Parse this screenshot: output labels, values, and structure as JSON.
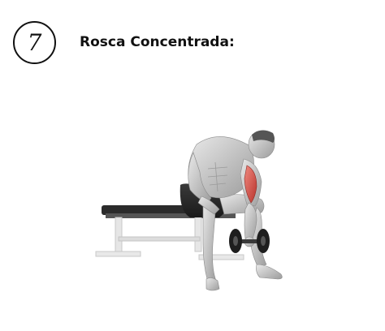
{
  "step": {
    "number": "7"
  },
  "exercise": {
    "title": "Rosca Concentrada:"
  },
  "illustration": {
    "subject": "seated-concentration-curl-figure",
    "highlight_color": "#d9534f",
    "muscle_color": "#bdbdbd",
    "bench_color": "#2b2b2b"
  }
}
